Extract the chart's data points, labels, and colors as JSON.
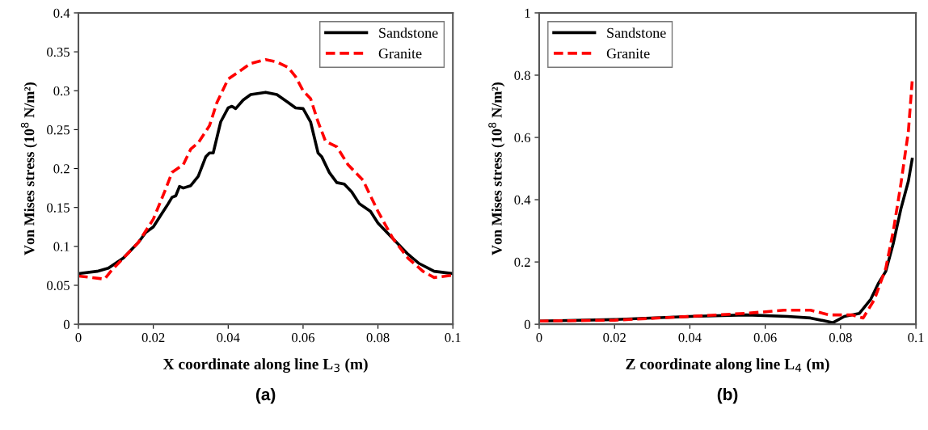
{
  "chart_data": [
    {
      "type": "line",
      "xlabel": "X coordinate along line L$_{3}$ (m)",
      "ylabel": "Von Mises stress (10$^{8}$ N/m²)",
      "annotations": [
        "(a)"
      ],
      "xlim": [
        0,
        0.1
      ],
      "ylim": [
        0,
        0.4
      ],
      "xticks": [
        0,
        0.02,
        0.04,
        0.06,
        0.08,
        0.1
      ],
      "yticks": [
        0,
        0.05,
        0.1,
        0.15,
        0.2,
        0.25,
        0.3,
        0.35,
        0.4
      ],
      "legend": "top right",
      "grid": false,
      "series": [
        {
          "name": "Sandstone",
          "color": "#000000",
          "line_style": "solid",
          "x": [
            0,
            0.005,
            0.008,
            0.012,
            0.016,
            0.018,
            0.02,
            0.022,
            0.024,
            0.025,
            0.026,
            0.027,
            0.028,
            0.03,
            0.032,
            0.034,
            0.035,
            0.036,
            0.038,
            0.04,
            0.041,
            0.042,
            0.044,
            0.046,
            0.05,
            0.053,
            0.056,
            0.058,
            0.06,
            0.062,
            0.064,
            0.065,
            0.067,
            0.069,
            0.071,
            0.073,
            0.075,
            0.078,
            0.08,
            0.084,
            0.088,
            0.091,
            0.095,
            0.1
          ],
          "values": [
            0.065,
            0.068,
            0.072,
            0.085,
            0.105,
            0.118,
            0.125,
            0.14,
            0.155,
            0.163,
            0.165,
            0.177,
            0.175,
            0.178,
            0.19,
            0.215,
            0.22,
            0.22,
            0.26,
            0.278,
            0.28,
            0.277,
            0.288,
            0.295,
            0.298,
            0.295,
            0.285,
            0.278,
            0.277,
            0.26,
            0.22,
            0.215,
            0.195,
            0.182,
            0.18,
            0.17,
            0.155,
            0.145,
            0.13,
            0.11,
            0.09,
            0.078,
            0.068,
            0.065
          ]
        },
        {
          "name": "Granite",
          "color": "#ff0000",
          "line_style": "dashed",
          "x": [
            0,
            0.007,
            0.009,
            0.012,
            0.016,
            0.02,
            0.023,
            0.025,
            0.028,
            0.03,
            0.032,
            0.035,
            0.037,
            0.04,
            0.043,
            0.046,
            0.05,
            0.053,
            0.056,
            0.058,
            0.06,
            0.062,
            0.064,
            0.066,
            0.069,
            0.072,
            0.076,
            0.08,
            0.084,
            0.088,
            0.092,
            0.095,
            0.1
          ],
          "values": [
            0.062,
            0.058,
            0.07,
            0.085,
            0.105,
            0.135,
            0.17,
            0.195,
            0.205,
            0.225,
            0.233,
            0.255,
            0.285,
            0.315,
            0.325,
            0.335,
            0.34,
            0.337,
            0.33,
            0.318,
            0.3,
            0.29,
            0.26,
            0.235,
            0.228,
            0.205,
            0.185,
            0.145,
            0.11,
            0.085,
            0.068,
            0.06,
            0.063
          ]
        }
      ]
    },
    {
      "type": "line",
      "xlabel": "Z coordinate along line L$_{4}$ (m)",
      "ylabel": "Von Mises stress (10$^{8}$ N/m²)",
      "annotations": [
        "(b)"
      ],
      "xlim": [
        0,
        0.1
      ],
      "ylim": [
        0,
        1
      ],
      "xticks": [
        0,
        0.02,
        0.04,
        0.06,
        0.08,
        0.1
      ],
      "yticks": [
        0,
        0.2,
        0.4,
        0.6,
        0.8,
        1
      ],
      "legend": "top left",
      "grid": false,
      "series": [
        {
          "name": "Sandstone",
          "color": "#000000",
          "line_style": "solid",
          "x": [
            0,
            0.02,
            0.04,
            0.055,
            0.066,
            0.072,
            0.078,
            0.081,
            0.085,
            0.088,
            0.09,
            0.092,
            0.094,
            0.096,
            0.098,
            0.099
          ],
          "values": [
            0.01,
            0.015,
            0.025,
            0.03,
            0.025,
            0.02,
            0.005,
            0.025,
            0.035,
            0.08,
            0.13,
            0.17,
            0.26,
            0.37,
            0.46,
            0.53
          ]
        },
        {
          "name": "Granite",
          "color": "#ff0000",
          "line_style": "dashed",
          "x": [
            0,
            0.02,
            0.04,
            0.055,
            0.065,
            0.072,
            0.077,
            0.079,
            0.083,
            0.086,
            0.089,
            0.092,
            0.094,
            0.096,
            0.098,
            0.099
          ],
          "values": [
            0.01,
            0.013,
            0.025,
            0.035,
            0.045,
            0.045,
            0.03,
            0.03,
            0.03,
            0.02,
            0.08,
            0.18,
            0.3,
            0.45,
            0.62,
            0.78
          ]
        }
      ]
    }
  ]
}
